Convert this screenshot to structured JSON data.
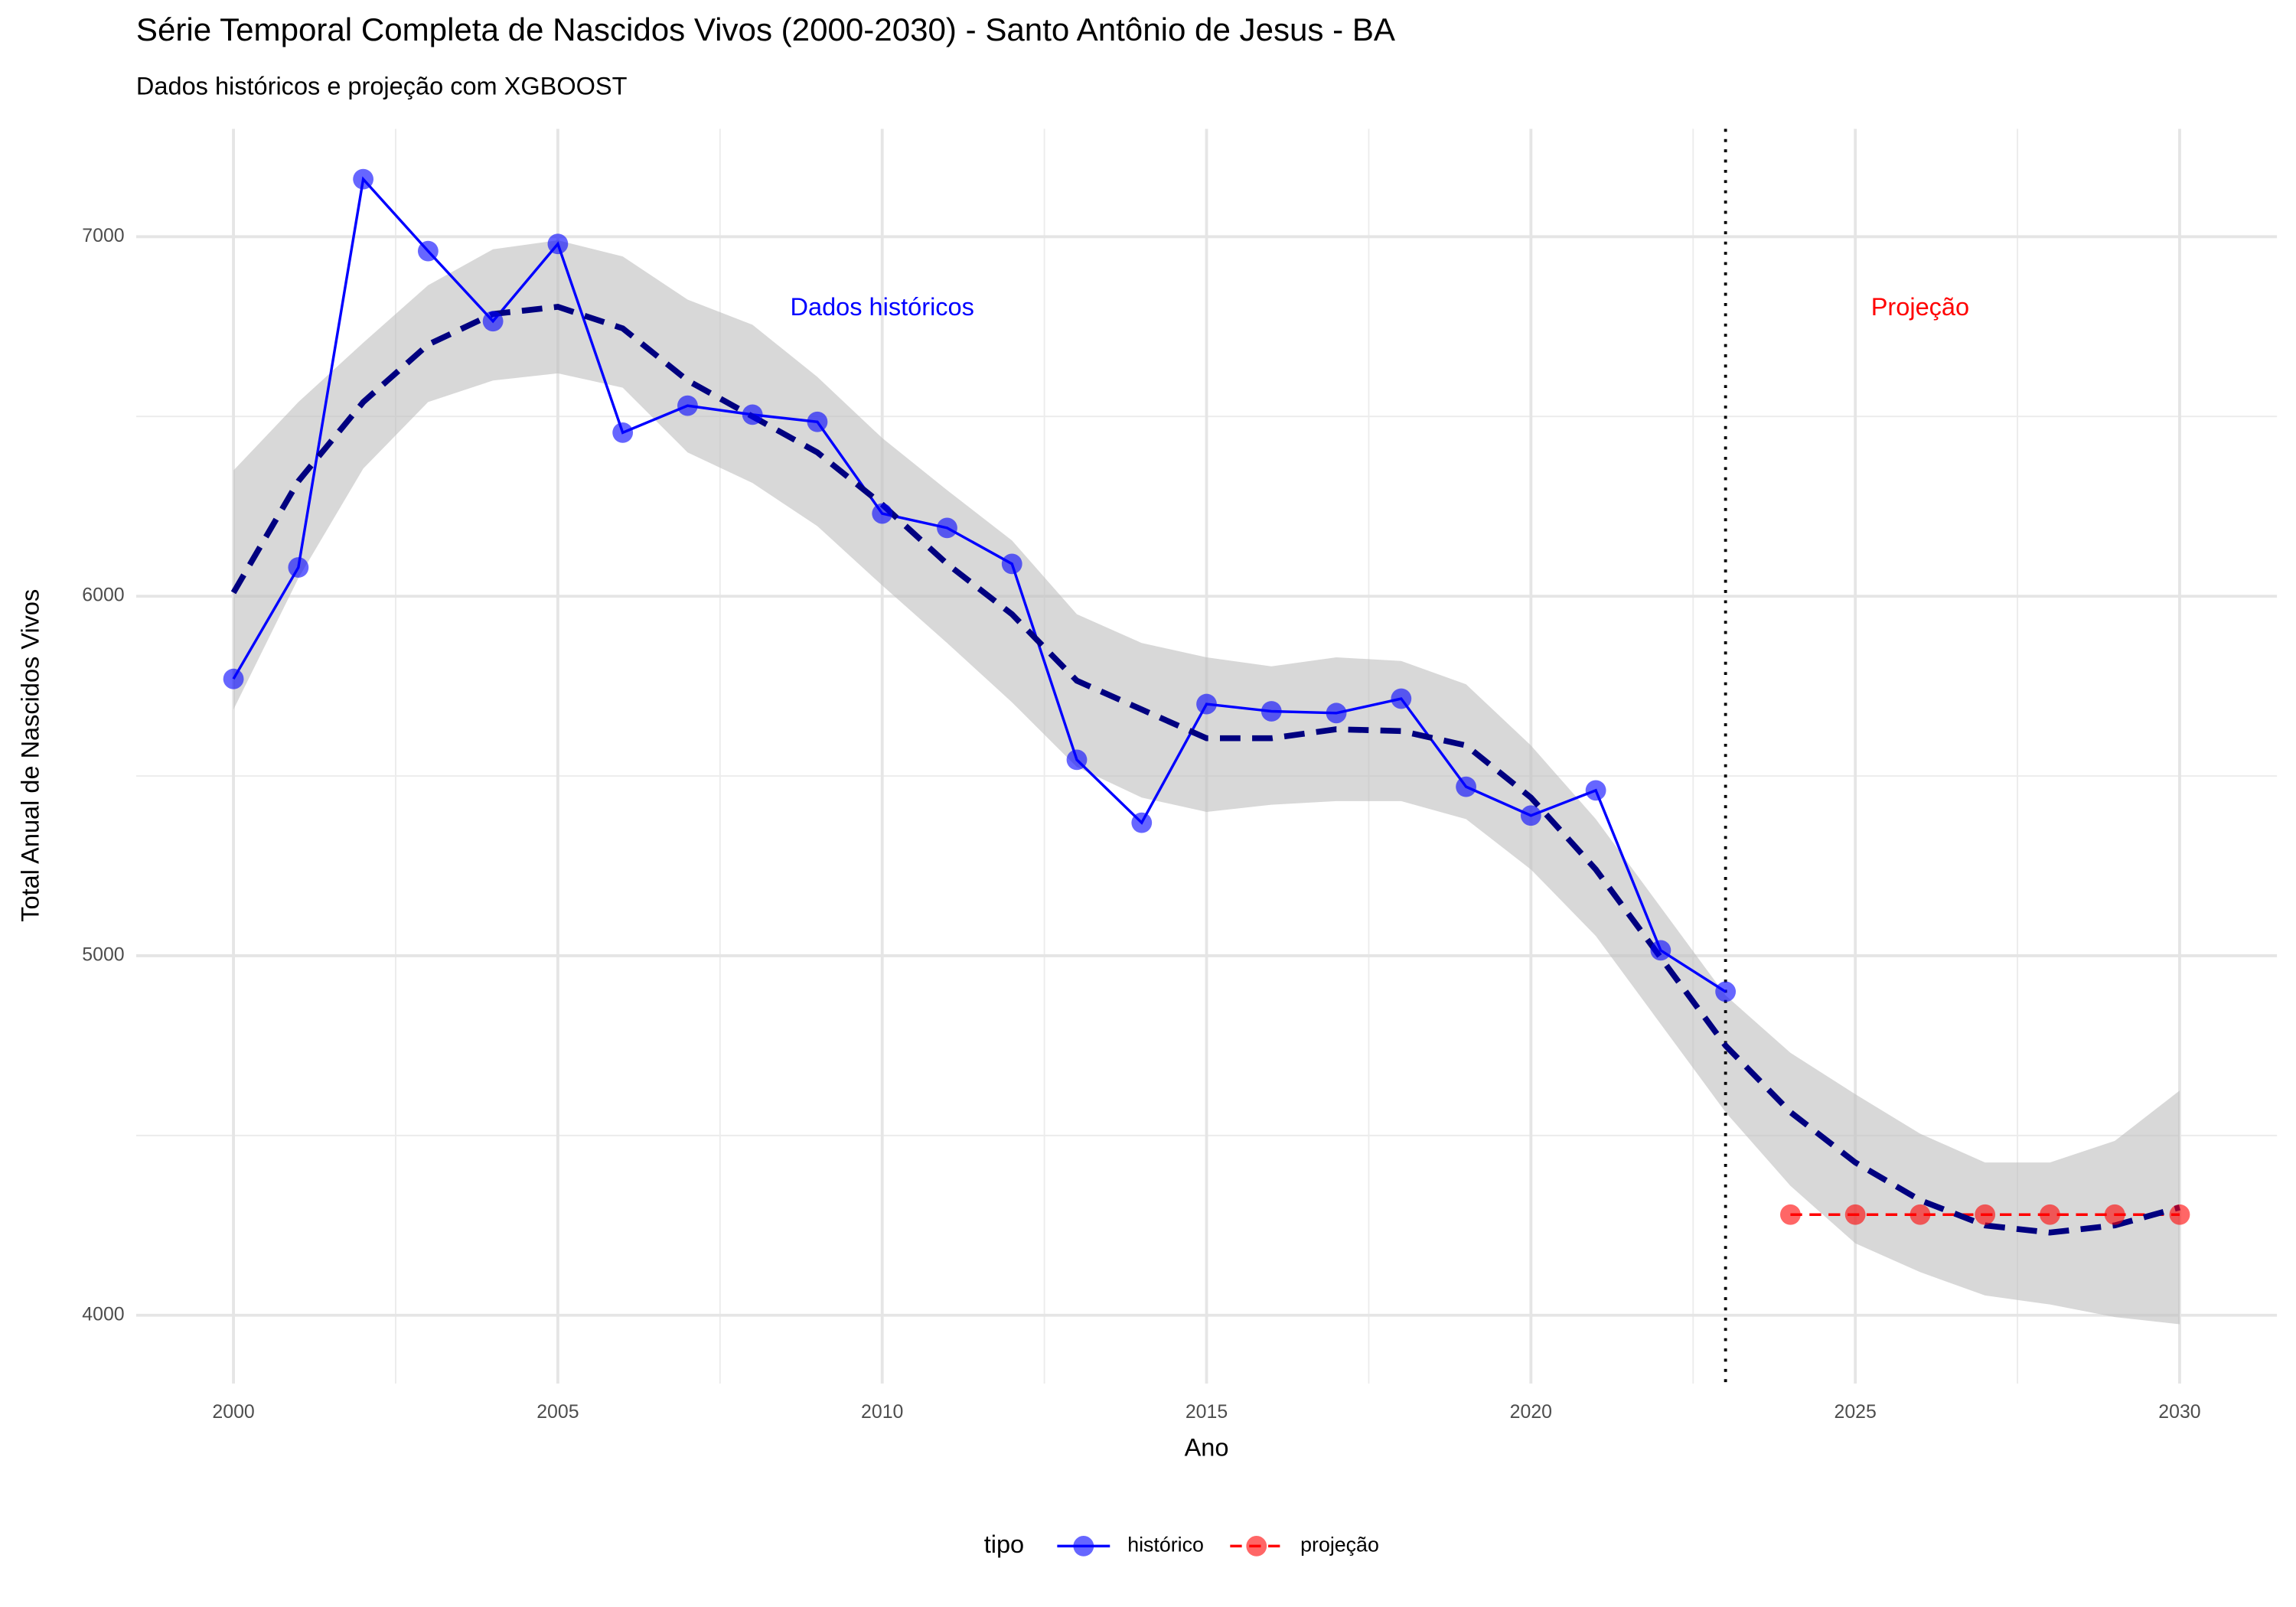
{
  "chart_data": {
    "type": "line",
    "title": "Série Temporal Completa de Nascidos Vivos (2000-2030) -  Santo Antônio de Jesus - BA",
    "subtitle": "Dados históricos e projeção com XGBOOST",
    "x_label": "Ano",
    "y_label": "Total Anual de Nascidos Vivos",
    "legend_title": "tipo",
    "legend_position": "bottom",
    "grid": true,
    "xlim": [
      1998.5,
      2031.5
    ],
    "ylim": [
      3810,
      7300
    ],
    "xticks": [
      2000,
      2005,
      2010,
      2015,
      2020,
      2025,
      2030
    ],
    "yticks": [
      4000,
      5000,
      6000,
      7000
    ],
    "xminor": [
      2002.5,
      2007.5,
      2012.5,
      2017.5,
      2022.5,
      2027.5
    ],
    "yminor": [
      4500,
      5500,
      6500
    ],
    "series": [
      {
        "name": "histórico",
        "color": "#0000ff",
        "line_style": "solid",
        "x": [
          2000,
          2001,
          2002,
          2003,
          2004,
          2005,
          2006,
          2007,
          2008,
          2009,
          2010,
          2011,
          2012,
          2013,
          2014,
          2015,
          2016,
          2017,
          2018,
          2019,
          2020,
          2021,
          2022,
          2023
        ],
        "values": [
          5770,
          6080,
          7160,
          6960,
          6765,
          6980,
          6455,
          6530,
          6505,
          6485,
          6230,
          6190,
          6090,
          5545,
          5370,
          5700,
          5680,
          5675,
          5715,
          5470,
          5390,
          5460,
          5015,
          4900
        ]
      },
      {
        "name": "projeção",
        "color": "#ff0000",
        "line_style": "dashed",
        "x": [
          2024,
          2025,
          2026,
          2027,
          2028,
          2029,
          2030
        ],
        "values": [
          4280,
          4280,
          4280,
          4280,
          4280,
          4280,
          4280
        ]
      }
    ],
    "smooth": {
      "color": "#000080",
      "ribbon_color": "#bebebe",
      "x": [
        2000,
        2001,
        2002,
        2003,
        2004,
        2005,
        2006,
        2007,
        2008,
        2009,
        2010,
        2011,
        2012,
        2013,
        2014,
        2015,
        2016,
        2017,
        2018,
        2019,
        2020,
        2021,
        2022,
        2023,
        2024,
        2025,
        2026,
        2027,
        2028,
        2029,
        2030
      ],
      "values": [
        6010,
        6320,
        6540,
        6700,
        6785,
        6805,
        6745,
        6600,
        6500,
        6400,
        6255,
        6090,
        5950,
        5765,
        5685,
        5605,
        5605,
        5630,
        5625,
        5585,
        5440,
        5240,
        4995,
        4750,
        4565,
        4425,
        4320,
        4250,
        4230,
        4250,
        4300
      ],
      "lower": [
        5685,
        6050,
        6355,
        6540,
        6600,
        6620,
        6580,
        6400,
        6315,
        6195,
        6030,
        5870,
        5705,
        5525,
        5440,
        5400,
        5420,
        5430,
        5430,
        5380,
        5240,
        5055,
        4810,
        4565,
        4360,
        4200,
        4120,
        4055,
        4030,
        3995,
        3975
      ],
      "upper": [
        6350,
        6540,
        6705,
        6865,
        6965,
        6990,
        6945,
        6825,
        6755,
        6610,
        6440,
        6295,
        6155,
        5950,
        5870,
        5830,
        5805,
        5830,
        5820,
        5755,
        5585,
        5380,
        5135,
        4890,
        4730,
        4615,
        4505,
        4425,
        4425,
        4485,
        4625
      ]
    },
    "vline": 2023,
    "annotations": [
      {
        "text": "Dados históricos",
        "x": 2010,
        "y": 6800,
        "color": "#0000ff"
      },
      {
        "text": "Projeção",
        "x": 2026,
        "y": 6800,
        "color": "#ff0000"
      }
    ]
  }
}
